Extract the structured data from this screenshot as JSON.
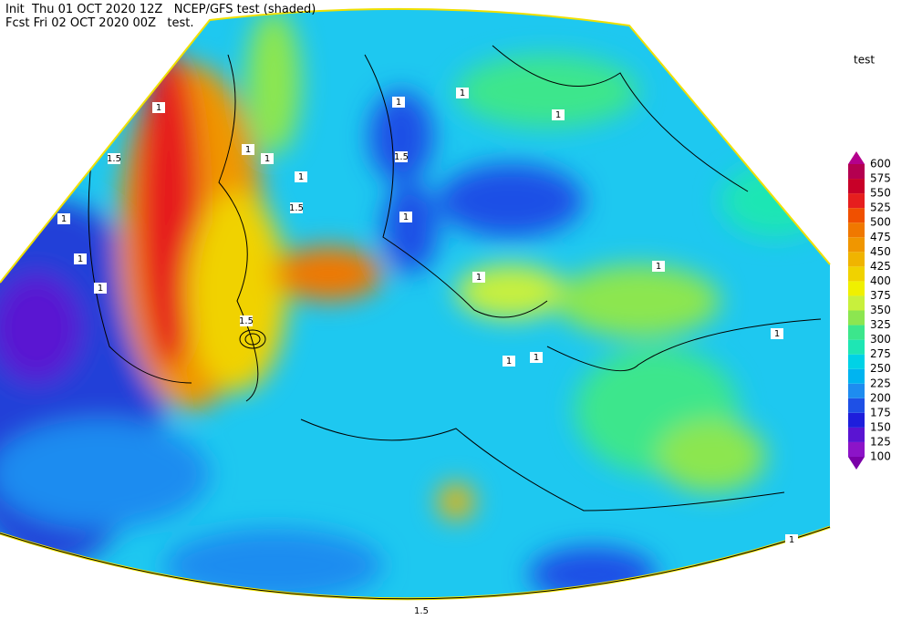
{
  "header": {
    "line1": "Init  Thu 01 OCT 2020 12Z   NCEP/GFS test (shaded)",
    "line2": "Fcst Fri 02 OCT 2020 00Z   test."
  },
  "legend": {
    "title": "test",
    "levels": [
      "100",
      "125",
      "150",
      "175",
      "200",
      "225",
      "250",
      "275",
      "300",
      "325",
      "350",
      "375",
      "400",
      "425",
      "450",
      "475",
      "500",
      "525",
      "550",
      "575",
      "600"
    ],
    "colors": [
      "#7a00a8",
      "#8c14c8",
      "#5a14d2",
      "#1e1edc",
      "#1e50e6",
      "#1e8cf0",
      "#00b4f0",
      "#00d2e6",
      "#1ee6b4",
      "#3ce68c",
      "#8ce650",
      "#c8f03c",
      "#f0f000",
      "#f0d200",
      "#f0b400",
      "#f09600",
      "#f07800",
      "#f05000",
      "#e61e1e",
      "#c80028",
      "#b40050",
      "#b4008c"
    ]
  },
  "contour_labels": [
    "1",
    "1.5",
    "1",
    "1",
    "1",
    "1.5",
    "1.5",
    "1",
    "1",
    "1",
    "1.5",
    "1",
    "1",
    "1",
    "1",
    "1",
    "1",
    "1",
    "1",
    "1",
    "1",
    "1.5"
  ]
}
